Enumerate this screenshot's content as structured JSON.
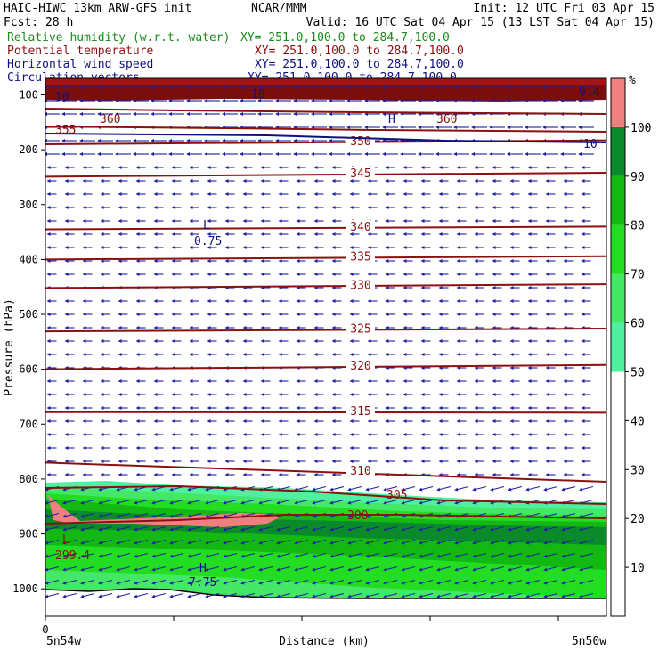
{
  "header": {
    "left1": "HAIC-HIWC 13km ARW-GFS init",
    "org": "NCAR/MMM",
    "init": "Init: 12 UTC Fri 03 Apr 15",
    "left2": "Fcst:    28 h",
    "valid": "Valid: 16 UTC Sat 04 Apr 15 (13 LST Sat 04 Apr 15)",
    "fields": [
      {
        "name": "Relative humidity (w.r.t. water)",
        "xy": "XY= 251.0,100.0 to 284.7,100.0",
        "color": "#1a8a1a"
      },
      {
        "name": "Potential temperature",
        "xy": "XY= 251.0,100.0 to 284.7,100.0",
        "color": "#8b1010"
      },
      {
        "name": "Horizontal wind speed",
        "xy": "XY= 251.0,100.0 to 284.7,100.0",
        "color": "#101080"
      },
      {
        "name": "Circulation vectors",
        "xy": "XY= 251.0,100.0 to 284.7,100.0",
        "color": "#101080"
      }
    ]
  },
  "chart_data": {
    "type": "cross-section",
    "ylabel": "Pressure (hPa)",
    "xlabel": "Distance (km)",
    "x_tick": "0",
    "x_left_label": "5n54w",
    "x_right_label": "5n50w",
    "y_ticks": [
      100,
      200,
      300,
      400,
      500,
      600,
      700,
      800,
      900,
      1000
    ],
    "ylim": [
      1050,
      70
    ],
    "colorbar": {
      "unit": "%",
      "ticks": [
        10,
        20,
        30,
        40,
        50,
        60,
        70,
        80,
        90,
        100
      ],
      "bins": [
        {
          "from": 0,
          "to": 50,
          "color": "#ffffff"
        },
        {
          "from": 50,
          "to": 60,
          "color": "#4ff0a0"
        },
        {
          "from": 60,
          "to": 70,
          "color": "#44e866"
        },
        {
          "from": 70,
          "to": 80,
          "color": "#22dd22"
        },
        {
          "from": 80,
          "to": 90,
          "color": "#13b813"
        },
        {
          "from": 90,
          "to": 100,
          "color": "#0a8a2a"
        },
        {
          "from": 100,
          "to": 110,
          "color": "#f08080"
        }
      ]
    },
    "theta_contours": [
      {
        "label": "310",
        "y": [
          770,
          788,
          805
        ]
      },
      {
        "label": "315",
        "y": [
          678,
          678,
          679
        ]
      },
      {
        "label": "320",
        "y": [
          600,
          598,
          592
        ]
      },
      {
        "label": "325",
        "y": [
          531,
          529,
          526
        ]
      },
      {
        "label": "330",
        "y": [
          452,
          450,
          445
        ]
      },
      {
        "label": "335",
        "y": [
          400,
          398,
          394
        ]
      },
      {
        "label": "340",
        "y": [
          345,
          343,
          340
        ]
      },
      {
        "label": "345",
        "y": [
          249,
          247,
          242
        ]
      },
      {
        "label": "350",
        "y": [
          190,
          187,
          183
        ]
      }
    ],
    "theta_labels_extra": [
      "360",
      "360",
      "355",
      "305",
      "300",
      "299.4"
    ],
    "wind_labels": [
      "10",
      "10",
      "10",
      "0.75",
      "7.75",
      "9.4"
    ],
    "extrema_labels": [
      "L",
      "L",
      "H",
      "H",
      "L"
    ]
  }
}
